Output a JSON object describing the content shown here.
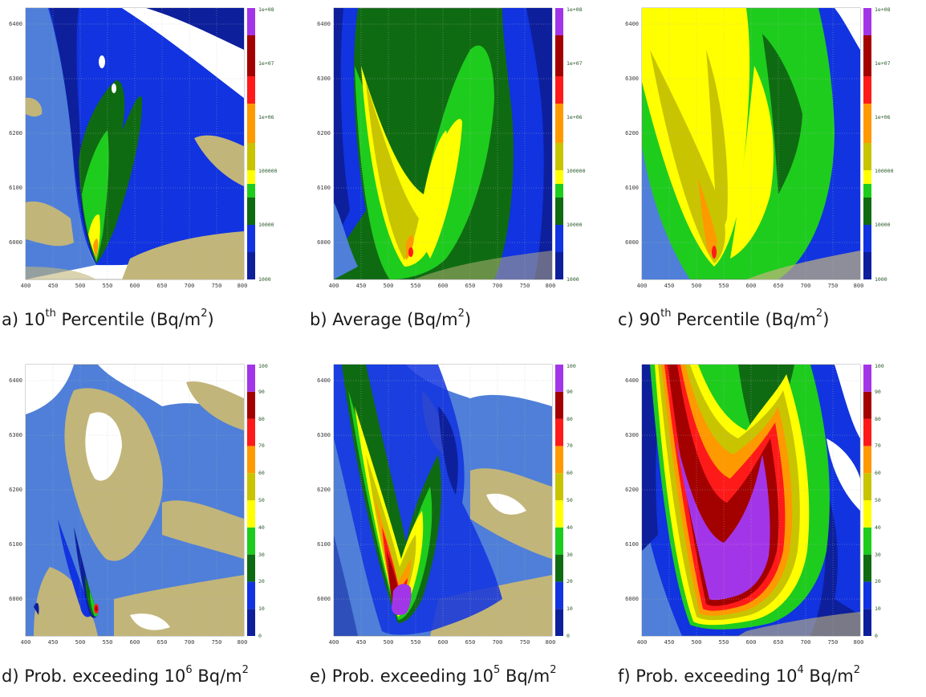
{
  "axes": {
    "x_ticks": [
      "400",
      "450",
      "500",
      "550",
      "600",
      "650",
      "700",
      "750",
      "800"
    ],
    "y_ticks": [
      "6000",
      "6100",
      "6200",
      "6300",
      "6400"
    ]
  },
  "legends": {
    "deposition": [
      "1000",
      "10000",
      "100000",
      "1e+06",
      "1e+07",
      "1e+08"
    ],
    "probability": [
      "0",
      "10",
      "20",
      "30",
      "40",
      "50",
      "60",
      "70",
      "80",
      "90",
      "100"
    ]
  },
  "colors": {
    "background_sea": "#4f7fd8",
    "land": "#c2b57a",
    "white": "#ffffff",
    "scale": [
      "#0d1f9b",
      "#1133e0",
      "#0f6b12",
      "#1ecc1e",
      "#ffff00",
      "#c8c400",
      "#ff9900",
      "#ff1a1a",
      "#a30000",
      "#a335e8"
    ]
  },
  "panels": [
    {
      "id": "a",
      "label": "a) 10",
      "sup": "th",
      "rest": " Percentile (Bq/m",
      "sup2": "2",
      "tail": ")",
      "legend": "deposition"
    },
    {
      "id": "b",
      "label": "b) Average (Bq/m",
      "sup": "2",
      "rest": ")",
      "sup2": "",
      "tail": "",
      "legend": "deposition"
    },
    {
      "id": "c",
      "label": "c)  90",
      "sup": "th",
      "rest": " Percentile (Bq/m",
      "sup2": "2",
      "tail": ")",
      "legend": "deposition"
    },
    {
      "id": "d",
      "label": "d) Prob. exceeding 10",
      "sup": "6",
      "rest": " Bq/m",
      "sup2": "2",
      "tail": "",
      "legend": "probability"
    },
    {
      "id": "e",
      "label": "e) Prob. exceeding 10",
      "sup": "5",
      "rest": " Bq/m",
      "sup2": "2",
      "tail": "",
      "legend": "probability"
    },
    {
      "id": "f",
      "label": "f) Prob. exceeding 10",
      "sup": "4",
      "rest": " Bq/m",
      "sup2": "2",
      "tail": "",
      "legend": "probability"
    }
  ],
  "chart_data": [
    {
      "type": "heatmap",
      "panel": "a",
      "xlim": [
        400,
        800
      ],
      "ylim": [
        5940,
        6440
      ],
      "colorbar": [
        "1000",
        "10000",
        "100000",
        "1e+06",
        "1e+07",
        "1e+08"
      ]
    },
    {
      "type": "heatmap",
      "panel": "b",
      "xlim": [
        400,
        800
      ],
      "ylim": [
        5940,
        6440
      ],
      "colorbar": [
        "1000",
        "10000",
        "100000",
        "1e+06",
        "1e+07",
        "1e+08"
      ]
    },
    {
      "type": "heatmap",
      "panel": "c",
      "xlim": [
        400,
        800
      ],
      "ylim": [
        5940,
        6440
      ],
      "colorbar": [
        "1000",
        "10000",
        "100000",
        "1e+06",
        "1e+07",
        "1e+08"
      ]
    },
    {
      "type": "heatmap",
      "panel": "d",
      "xlim": [
        400,
        800
      ],
      "ylim": [
        5940,
        6440
      ],
      "colorbar": [
        "0",
        "10",
        "20",
        "30",
        "40",
        "50",
        "60",
        "70",
        "80",
        "90",
        "100"
      ]
    },
    {
      "type": "heatmap",
      "panel": "e",
      "xlim": [
        400,
        800
      ],
      "ylim": [
        5940,
        6440
      ],
      "colorbar": [
        "0",
        "10",
        "20",
        "30",
        "40",
        "50",
        "60",
        "70",
        "80",
        "90",
        "100"
      ]
    },
    {
      "type": "heatmap",
      "panel": "f",
      "xlim": [
        400,
        800
      ],
      "ylim": [
        5940,
        6440
      ],
      "colorbar": [
        "0",
        "10",
        "20",
        "30",
        "40",
        "50",
        "60",
        "70",
        "80",
        "90",
        "100"
      ]
    }
  ]
}
